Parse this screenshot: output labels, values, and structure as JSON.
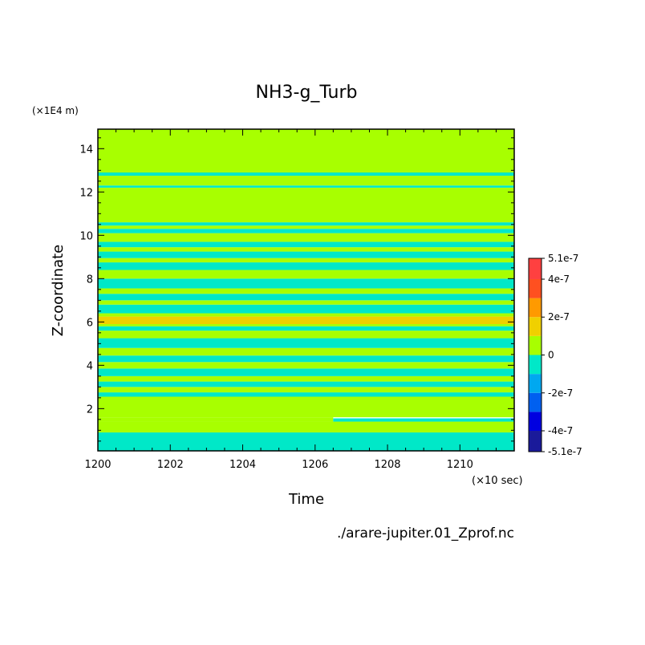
{
  "chart_data": {
    "type": "heatmap",
    "title": "NH3-g_Turb",
    "xlabel": "Time",
    "ylabel": "Z-coordinate",
    "x_unit_label": "(×10 sec)",
    "y_unit_label": "(×1E4 m)",
    "source_label": "./arare-jupiter.01_Zprof.nc",
    "xlim": [
      1200,
      1211.5
    ],
    "ylim": [
      0.05,
      14.9
    ],
    "x_ticks": [
      "1200",
      "1202",
      "1204",
      "1206",
      "1208",
      "1210"
    ],
    "y_ticks": [
      "2",
      "4",
      "6",
      "8",
      "10",
      "12",
      "14"
    ],
    "colorbar": {
      "tick_labels": [
        "5.1e-7",
        "4e-7",
        "2e-7",
        "0",
        "-2e-7",
        "-4e-7",
        "-5.1e-7"
      ],
      "levels": [
        -5.1e-07,
        -4e-07,
        -3e-07,
        -2e-07,
        -1e-07,
        0,
        1e-07,
        2e-07,
        3e-07,
        4e-07,
        5.1e-07
      ],
      "colors": [
        "#1a1a9a",
        "#0000e0",
        "#0060f0",
        "#00a8f0",
        "#00e8c8",
        "#a8ff00",
        "#f0d000",
        "#ff9a00",
        "#ff5020",
        "#ff4040"
      ]
    },
    "bands": [
      {
        "z0": 0.05,
        "z1": 0.9,
        "value": -5e-08
      },
      {
        "z0": 0.9,
        "z1": 1.4,
        "value": 5e-08
      },
      {
        "z0": 1.4,
        "z1": 1.6,
        "value": 5e-08,
        "t_start": 1200,
        "t_end": 1206.5
      },
      {
        "z0": 1.4,
        "z1": 1.55,
        "value": -5e-08,
        "t_start": 1206.5,
        "t_end": 1211.5
      },
      {
        "z0": 1.6,
        "z1": 2.55,
        "value": 5e-08
      },
      {
        "z0": 2.55,
        "z1": 2.75,
        "value": -5e-08
      },
      {
        "z0": 2.75,
        "z1": 3.0,
        "value": 5e-08
      },
      {
        "z0": 3.0,
        "z1": 3.25,
        "value": -5e-08
      },
      {
        "z0": 3.25,
        "z1": 3.5,
        "value": 5e-08
      },
      {
        "z0": 3.5,
        "z1": 3.85,
        "value": -5e-08
      },
      {
        "z0": 3.85,
        "z1": 4.15,
        "value": 5e-08
      },
      {
        "z0": 4.15,
        "z1": 4.45,
        "value": -5e-08
      },
      {
        "z0": 4.45,
        "z1": 4.8,
        "value": 5e-08
      },
      {
        "z0": 4.8,
        "z1": 5.25,
        "value": -5e-08
      },
      {
        "z0": 5.25,
        "z1": 5.6,
        "value": 5e-08
      },
      {
        "z0": 5.6,
        "z1": 5.8,
        "value": -5e-08
      },
      {
        "z0": 5.8,
        "z1": 5.9,
        "value": 5e-08
      },
      {
        "z0": 5.9,
        "z1": 6.25,
        "value": 1.5e-07
      },
      {
        "z0": 6.25,
        "z1": 6.4,
        "value": 5e-08
      },
      {
        "z0": 6.4,
        "z1": 6.8,
        "value": -5e-08
      },
      {
        "z0": 6.8,
        "z1": 7.0,
        "value": 5e-08
      },
      {
        "z0": 7.0,
        "z1": 7.3,
        "value": -5e-08
      },
      {
        "z0": 7.3,
        "z1": 7.55,
        "value": 5e-08
      },
      {
        "z0": 7.55,
        "z1": 8.0,
        "value": -5e-08
      },
      {
        "z0": 8.0,
        "z1": 8.4,
        "value": 5e-08
      },
      {
        "z0": 8.4,
        "z1": 8.75,
        "value": -5e-08
      },
      {
        "z0": 8.75,
        "z1": 8.95,
        "value": 5e-08
      },
      {
        "z0": 8.95,
        "z1": 9.25,
        "value": -5e-08
      },
      {
        "z0": 9.25,
        "z1": 9.45,
        "value": 5e-08
      },
      {
        "z0": 9.45,
        "z1": 9.7,
        "value": -5e-08
      },
      {
        "z0": 9.7,
        "z1": 10.1,
        "value": 5e-08
      },
      {
        "z0": 10.1,
        "z1": 10.3,
        "value": -5e-08
      },
      {
        "z0": 10.3,
        "z1": 10.45,
        "value": 5e-08
      },
      {
        "z0": 10.45,
        "z1": 10.6,
        "value": -5e-08
      },
      {
        "z0": 10.6,
        "z1": 12.2,
        "value": 5e-08
      },
      {
        "z0": 12.2,
        "z1": 12.3,
        "value": -5e-08
      },
      {
        "z0": 12.3,
        "z1": 12.75,
        "value": 5e-08
      },
      {
        "z0": 12.75,
        "z1": 12.9,
        "value": -5e-08
      },
      {
        "z0": 12.9,
        "z1": 13.1,
        "value": -5e-08,
        "t_start": 1208.8,
        "t_end": 1211.5
      },
      {
        "z0": 12.9,
        "z1": 14.9,
        "value": 5e-08
      }
    ]
  }
}
